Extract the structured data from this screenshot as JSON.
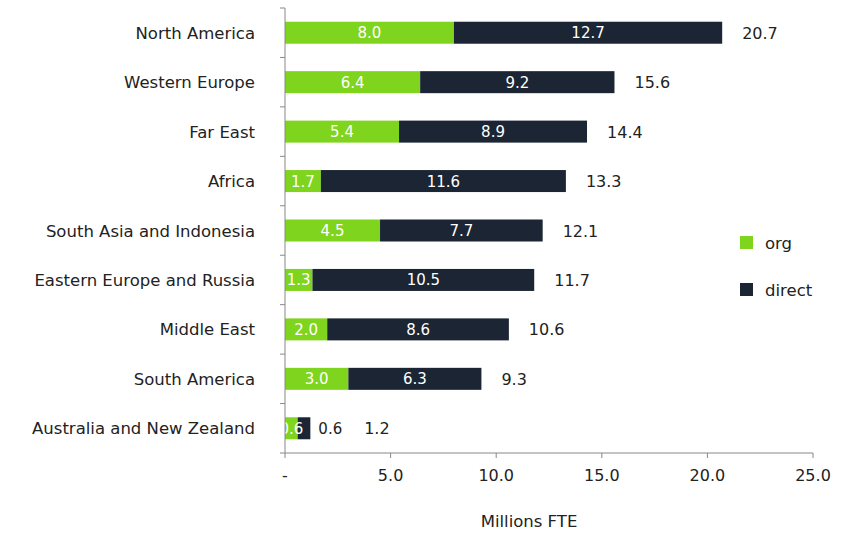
{
  "chart_data": {
    "type": "bar",
    "orientation": "horizontal",
    "stacked": true,
    "data_labels": true,
    "legend": "right",
    "grid": false,
    "categories": [
      "North America",
      "Western Europe",
      "Far East",
      "Africa",
      "South Asia and Indonesia",
      "Eastern Europe and Russia",
      "Middle East",
      "South America",
      "Australia and New Zealand"
    ],
    "series": [
      {
        "name": "org",
        "color": "#7fd41e",
        "values": [
          8.0,
          6.4,
          5.4,
          1.7,
          4.5,
          1.3,
          2.0,
          3.0,
          0.6
        ],
        "value_labels": [
          "8.0",
          "6.4",
          "5.4",
          "1.7",
          "4.5",
          "1.3",
          "2.0",
          "3.0",
          "0.6"
        ]
      },
      {
        "name": "direct",
        "color": "#1b2533",
        "values": [
          12.7,
          9.2,
          8.9,
          11.6,
          7.7,
          10.5,
          8.6,
          6.3,
          0.6
        ],
        "value_labels": [
          "12.7",
          "9.2",
          "8.9",
          "11.6",
          "7.7",
          "10.5",
          "8.6",
          "6.3",
          "0.6"
        ]
      }
    ],
    "totals": [
      20.7,
      15.6,
      14.4,
      13.3,
      12.1,
      11.7,
      10.6,
      9.3,
      1.2
    ],
    "xlim": [
      0,
      25
    ],
    "xticks": [
      {
        "value": 0,
        "label": "-"
      },
      {
        "value": 5,
        "label": "5.0"
      },
      {
        "value": 10,
        "label": "10.0"
      },
      {
        "value": 15,
        "label": "15.0"
      },
      {
        "value": 20,
        "label": "20.0"
      },
      {
        "value": 25,
        "label": "25.0"
      }
    ],
    "xlabel": "Millions FTE"
  }
}
